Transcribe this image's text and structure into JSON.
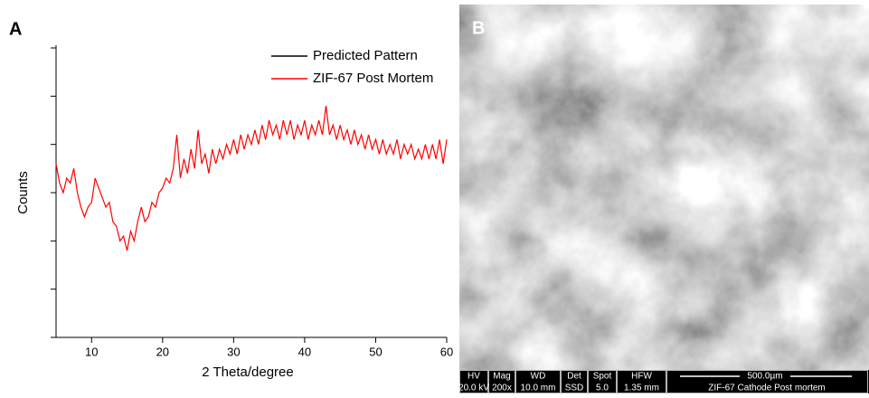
{
  "chart_data": {
    "type": "line",
    "panel_label": "A",
    "xlabel": "2 Theta/degree",
    "ylabel": "Counts",
    "x": [
      5,
      5.5,
      6,
      6.5,
      7,
      7.5,
      8,
      8.5,
      9,
      9.5,
      10,
      10.5,
      11,
      11.5,
      12,
      12.5,
      13,
      13.5,
      14,
      14.5,
      15,
      15.5,
      16,
      16.5,
      17,
      17.5,
      18,
      18.5,
      19,
      19.5,
      20,
      20.5,
      21,
      21.5,
      22,
      22.5,
      23,
      23.5,
      24,
      24.5,
      25,
      25.5,
      26,
      26.5,
      27,
      27.5,
      28,
      28.5,
      29,
      29.5,
      30,
      30.5,
      31,
      31.5,
      32,
      32.5,
      33,
      33.5,
      34,
      34.5,
      35,
      35.5,
      36,
      36.5,
      37,
      37.5,
      38,
      38.5,
      39,
      39.5,
      40,
      40.5,
      41,
      41.5,
      42,
      42.5,
      43,
      43.5,
      44,
      44.5,
      45,
      45.5,
      46,
      46.5,
      47,
      47.5,
      48,
      48.5,
      49,
      49.5,
      50,
      50.5,
      51,
      51.5,
      52,
      52.5,
      53,
      53.5,
      54,
      54.5,
      55,
      55.5,
      56,
      56.5,
      57,
      57.5,
      58,
      58.5,
      59,
      59.5,
      60
    ],
    "series": [
      {
        "name": "Predicted Pattern",
        "color": "#000000",
        "values": [
          null,
          null,
          null,
          null,
          null,
          null,
          null,
          null,
          null,
          null,
          null,
          null,
          null,
          null,
          null,
          null,
          null,
          null,
          null,
          null,
          null,
          null,
          null,
          null,
          null,
          null,
          null,
          null,
          null,
          null,
          null,
          null,
          null,
          null,
          null,
          null,
          null,
          null,
          null,
          null,
          null,
          null,
          null,
          null,
          null,
          null,
          null,
          null,
          null,
          null,
          null,
          null,
          null,
          null,
          null,
          null,
          null,
          null,
          null,
          null,
          null,
          null,
          null,
          null,
          null,
          null,
          null,
          null,
          null,
          null,
          null,
          null,
          null,
          null,
          null,
          null,
          null,
          null,
          null,
          null,
          null,
          null,
          null,
          null,
          null,
          null,
          null,
          null,
          null,
          null,
          null,
          null,
          null,
          null,
          null,
          null,
          null,
          null,
          null,
          null,
          null,
          null,
          null,
          null,
          null,
          null,
          null,
          null,
          null,
          null,
          null
        ]
      },
      {
        "name": "ZIF-67 Post Mortem",
        "color": "#ff0000",
        "values": [
          3.6,
          3.2,
          3.0,
          3.3,
          3.2,
          3.5,
          3.0,
          2.7,
          2.5,
          2.7,
          2.8,
          3.3,
          3.1,
          2.9,
          2.7,
          2.8,
          2.4,
          2.3,
          2.0,
          2.1,
          1.8,
          2.2,
          2.0,
          2.4,
          2.7,
          2.4,
          2.5,
          2.8,
          2.7,
          3.0,
          3.1,
          3.3,
          3.2,
          3.5,
          4.2,
          3.3,
          3.7,
          3.4,
          3.9,
          3.5,
          4.3,
          3.6,
          3.8,
          3.4,
          3.9,
          3.6,
          3.9,
          3.7,
          4.0,
          3.8,
          4.1,
          3.8,
          4.2,
          3.9,
          4.2,
          4.0,
          4.3,
          4.0,
          4.4,
          4.1,
          4.5,
          4.2,
          4.4,
          4.1,
          4.5,
          4.2,
          4.5,
          4.1,
          4.4,
          4.2,
          4.5,
          4.1,
          4.4,
          4.2,
          4.5,
          4.2,
          4.8,
          4.2,
          4.4,
          4.1,
          4.4,
          4.1,
          4.3,
          4.0,
          4.3,
          4.0,
          4.2,
          3.9,
          4.2,
          3.9,
          4.1,
          3.8,
          4.1,
          3.8,
          4.0,
          3.8,
          4.1,
          3.7,
          4.0,
          3.8,
          4.0,
          3.7,
          3.9,
          3.7,
          4.0,
          3.7,
          4.0,
          3.7,
          4.1,
          3.6,
          4.1
        ]
      }
    ],
    "xlim": [
      5,
      60
    ],
    "xticks": [
      10,
      20,
      30,
      40,
      50,
      60
    ],
    "ylim": [
      0,
      6
    ],
    "yticks": [
      0,
      1,
      2,
      3,
      4,
      5,
      6
    ],
    "legend": "upper right"
  },
  "image_panel": {
    "label": "B",
    "info_headers": [
      "HV",
      "Mag",
      "WD",
      "Det",
      "Spot",
      "HFW"
    ],
    "info_values": [
      "20.0 kV",
      "200x",
      "10.0 mm",
      "SSD",
      "5.0",
      "1.35 mm"
    ],
    "scale_bar": "500.0µm",
    "caption": "ZIF-67 Cathode Post mortem"
  }
}
